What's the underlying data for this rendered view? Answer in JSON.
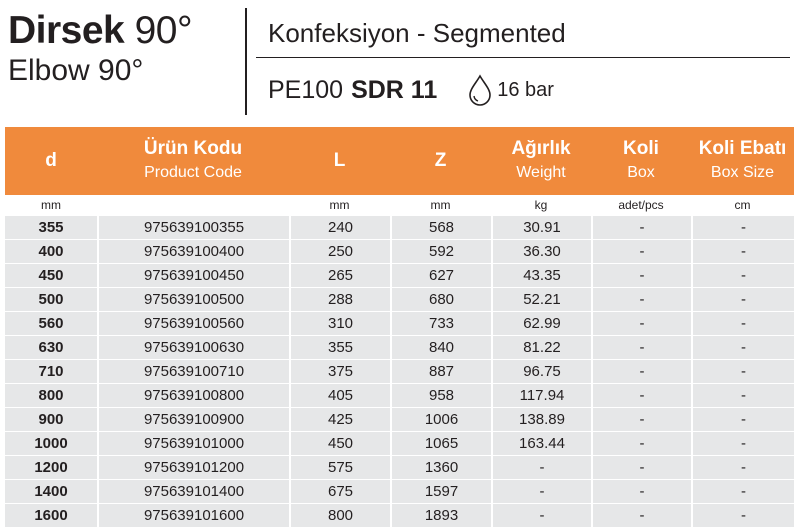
{
  "title": {
    "bold": "Dirsek",
    "light": "90°",
    "subtitle": "Elbow 90°"
  },
  "spec": {
    "type": "Konfeksiyon - Segmented",
    "material": "PE100",
    "sdr": "SDR 11",
    "pressure_icon": "droplet-icon",
    "pressure": "16 bar"
  },
  "table": {
    "header_color": "#f08a3c",
    "columns": [
      {
        "label": "d",
        "sub": "",
        "unit": "mm"
      },
      {
        "label": "Ürün Kodu",
        "sub": "Product Code",
        "unit": ""
      },
      {
        "label": "L",
        "sub": "",
        "unit": "mm"
      },
      {
        "label": "Z",
        "sub": "",
        "unit": "mm"
      },
      {
        "label": "Ağırlık",
        "sub": "Weight",
        "unit": "kg"
      },
      {
        "label": "Koli",
        "sub": "Box",
        "unit": "adet/pcs"
      },
      {
        "label": "Koli Ebatı",
        "sub": "Box Size",
        "unit": "cm"
      }
    ],
    "rows": [
      [
        "355",
        "975639100355",
        "240",
        "568",
        "30.91",
        "-",
        "-"
      ],
      [
        "400",
        "975639100400",
        "250",
        "592",
        "36.30",
        "-",
        "-"
      ],
      [
        "450",
        "975639100450",
        "265",
        "627",
        "43.35",
        "-",
        "-"
      ],
      [
        "500",
        "975639100500",
        "288",
        "680",
        "52.21",
        "-",
        "-"
      ],
      [
        "560",
        "975639100560",
        "310",
        "733",
        "62.99",
        "-",
        "-"
      ],
      [
        "630",
        "975639100630",
        "355",
        "840",
        "81.22",
        "-",
        "-"
      ],
      [
        "710",
        "975639100710",
        "375",
        "887",
        "96.75",
        "-",
        "-"
      ],
      [
        "800",
        "975639100800",
        "405",
        "958",
        "117.94",
        "-",
        "-"
      ],
      [
        "900",
        "975639100900",
        "425",
        "1006",
        "138.89",
        "-",
        "-"
      ],
      [
        "1000",
        "975639101000",
        "450",
        "1065",
        "163.44",
        "-",
        "-"
      ],
      [
        "1200",
        "975639101200",
        "575",
        "1360",
        "-",
        "-",
        "-"
      ],
      [
        "1400",
        "975639101400",
        "675",
        "1597",
        "-",
        "-",
        "-"
      ],
      [
        "1600",
        "975639101600",
        "800",
        "1893",
        "-",
        "-",
        "-"
      ]
    ]
  }
}
